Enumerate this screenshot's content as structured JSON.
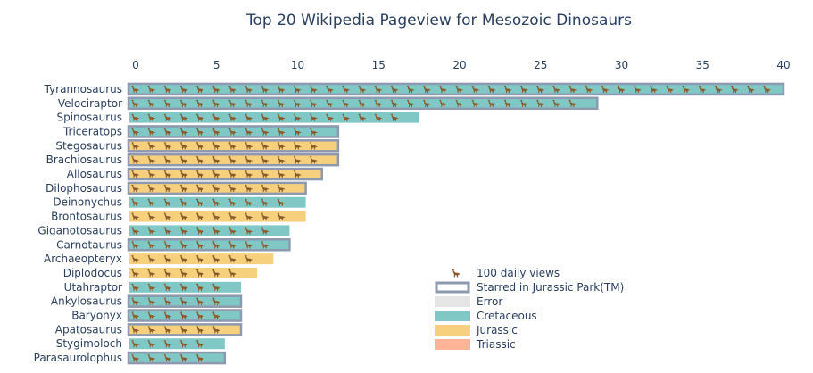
{
  "chart_data": {
    "type": "bar",
    "orientation": "horizontal",
    "title": "Top 20 Wikipedia Pageview for Mesozoic Dinosaurs",
    "xlabel": "",
    "ylabel": "",
    "x_axis_position": "top",
    "xlim": [
      0,
      40
    ],
    "x_ticks": [
      "0",
      "5",
      "10",
      "15",
      "20",
      "25",
      "30",
      "35",
      "40"
    ],
    "icon_unit_label": "100 daily views",
    "icon": "dinosaur-icon",
    "categories": [
      "Tyrannosaurus",
      "Velociraptor",
      "Spinosaurus",
      "Triceratops",
      "Stegosaurus",
      "Brachiosaurus",
      "Allosaurus",
      "Dilophosaurus",
      "Deinonychus",
      "Brontosaurus",
      "Giganotosaurus",
      "Carnotaurus",
      "Archaeopteryx",
      "Diplodocus",
      "Utahraptor",
      "Ankylosaurus",
      "Baryonyx",
      "Apatosaurus",
      "Stygimoloch",
      "Parasaurolophus"
    ],
    "values": [
      40,
      28.5,
      17.5,
      12.5,
      12.5,
      12.5,
      11.5,
      10.5,
      10.5,
      10.5,
      9.5,
      9.5,
      8.5,
      7.5,
      6.5,
      6.5,
      6.5,
      6.5,
      5.5,
      5.5
    ],
    "periods": [
      "Cretaceous",
      "Cretaceous",
      "Cretaceous",
      "Cretaceous",
      "Jurassic",
      "Jurassic",
      "Jurassic",
      "Jurassic",
      "Cretaceous",
      "Jurassic",
      "Cretaceous",
      "Cretaceous",
      "Jurassic",
      "Jurassic",
      "Cretaceous",
      "Cretaceous",
      "Cretaceous",
      "Jurassic",
      "Cretaceous",
      "Cretaceous"
    ],
    "starred": [
      true,
      true,
      false,
      true,
      true,
      true,
      true,
      true,
      false,
      false,
      false,
      true,
      false,
      false,
      false,
      true,
      true,
      true,
      false,
      true
    ],
    "legend": {
      "placement": "bottom-right",
      "items": [
        {
          "label": "100 daily views",
          "kind": "icon"
        },
        {
          "label": "Starred in Jurassic Park(TM)",
          "kind": "outline",
          "color": "#8d99ae"
        },
        {
          "label": "Error",
          "kind": "fill",
          "color": "#e5e5e5"
        },
        {
          "label": "Cretaceous",
          "kind": "fill",
          "color": "#80c8c5"
        },
        {
          "label": "Jurassic",
          "kind": "fill",
          "color": "#f6d07c"
        },
        {
          "label": "Triassic",
          "kind": "fill",
          "color": "#ffb397"
        }
      ]
    },
    "colors": {
      "Cretaceous": "#80c8c5",
      "Jurassic": "#f6d07c",
      "Triassic": "#ffb397",
      "Error": "#e5e5e5",
      "starred_outline": "#8d99ae",
      "icon": "#8a5a2b"
    },
    "grid": false
  }
}
